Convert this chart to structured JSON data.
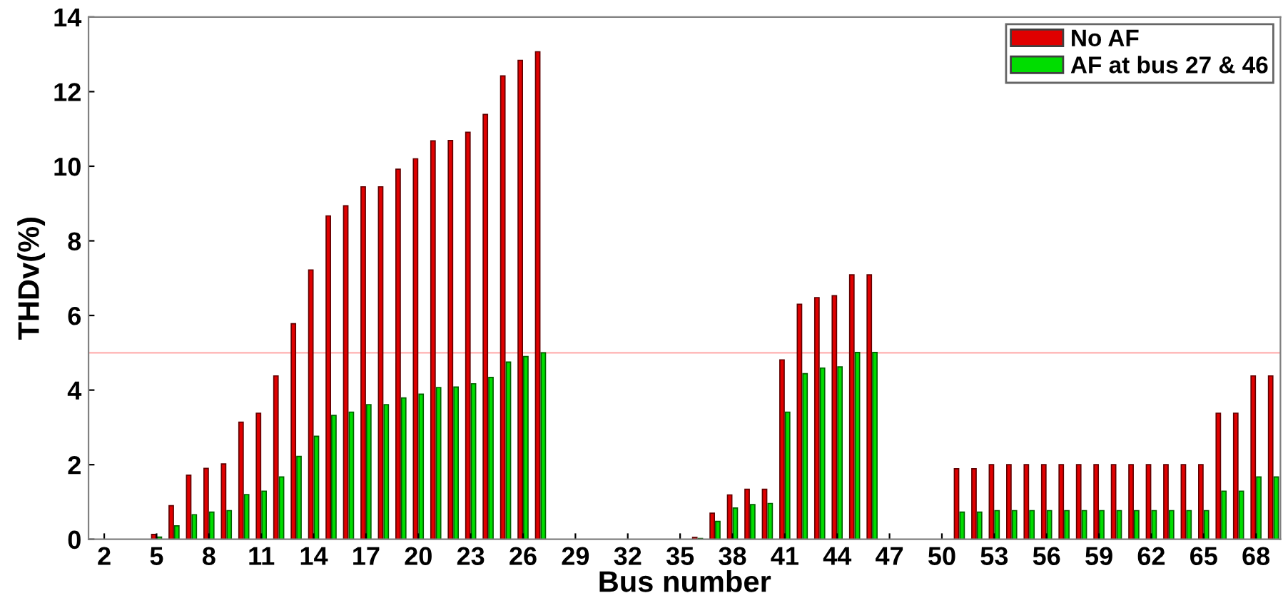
{
  "chart_data": {
    "type": "bar",
    "xlabel": "Bus number",
    "ylabel": "THDv(%)",
    "x": [
      2,
      3,
      4,
      5,
      6,
      7,
      8,
      9,
      10,
      11,
      12,
      13,
      14,
      15,
      16,
      17,
      18,
      19,
      20,
      21,
      22,
      23,
      24,
      25,
      26,
      27,
      28,
      29,
      30,
      31,
      32,
      33,
      34,
      35,
      36,
      37,
      38,
      39,
      40,
      41,
      42,
      43,
      44,
      45,
      46,
      47,
      48,
      49,
      50,
      51,
      52,
      53,
      54,
      55,
      56,
      57,
      58,
      59,
      60,
      61,
      62,
      63,
      64,
      65,
      66,
      67,
      68,
      69
    ],
    "series": [
      {
        "name": "No AF",
        "color": "#e00000",
        "values": [
          0,
          0,
          0,
          0.13,
          0.9,
          1.72,
          1.9,
          2.02,
          3.14,
          3.38,
          4.38,
          5.78,
          7.22,
          8.67,
          8.94,
          9.45,
          9.45,
          9.92,
          10.2,
          10.68,
          10.69,
          10.91,
          11.39,
          12.42,
          12.84,
          13.07,
          0,
          0,
          0,
          0,
          0,
          0,
          0,
          0,
          0.05,
          0.7,
          1.19,
          1.34,
          1.34,
          4.81,
          6.3,
          6.48,
          6.53,
          7.09,
          7.09,
          0,
          0,
          0,
          0,
          1.89,
          1.89,
          2.0,
          2.0,
          2.0,
          2.0,
          2.0,
          2.0,
          2.0,
          2.0,
          2.0,
          2.0,
          2.0,
          2.0,
          2.0,
          3.38,
          3.38,
          4.38,
          4.38
        ]
      },
      {
        "name": "AF at bus 27 & 46",
        "color": "#00dd00",
        "values": [
          0,
          0,
          0,
          0.06,
          0.36,
          0.66,
          0.73,
          0.77,
          1.2,
          1.29,
          1.67,
          2.22,
          2.76,
          3.32,
          3.41,
          3.61,
          3.61,
          3.79,
          3.89,
          4.07,
          4.08,
          4.17,
          4.34,
          4.75,
          4.9,
          5.0,
          0,
          0,
          0,
          0,
          0,
          0,
          0,
          0,
          0.02,
          0.48,
          0.84,
          0.93,
          0.96,
          3.41,
          4.44,
          4.59,
          4.62,
          5.01,
          5.01,
          0,
          0,
          0,
          0,
          0.73,
          0.73,
          0.77,
          0.77,
          0.77,
          0.77,
          0.77,
          0.77,
          0.77,
          0.77,
          0.77,
          0.77,
          0.77,
          0.77,
          0.77,
          1.29,
          1.29,
          1.67,
          1.67
        ]
      }
    ],
    "xlim": [
      1.1,
      69.4
    ],
    "xticks": [
      2,
      5,
      8,
      11,
      14,
      17,
      20,
      23,
      26,
      29,
      32,
      35,
      38,
      41,
      44,
      47,
      50,
      53,
      56,
      59,
      62,
      65,
      68
    ],
    "ylim": [
      0,
      14
    ],
    "yticks": [
      0,
      2,
      4,
      6,
      8,
      10,
      12,
      14
    ],
    "ref_lines": [
      {
        "axis": "y",
        "value": 5,
        "color": "#ffb0b0"
      }
    ],
    "legend": "top right",
    "grid": false
  }
}
